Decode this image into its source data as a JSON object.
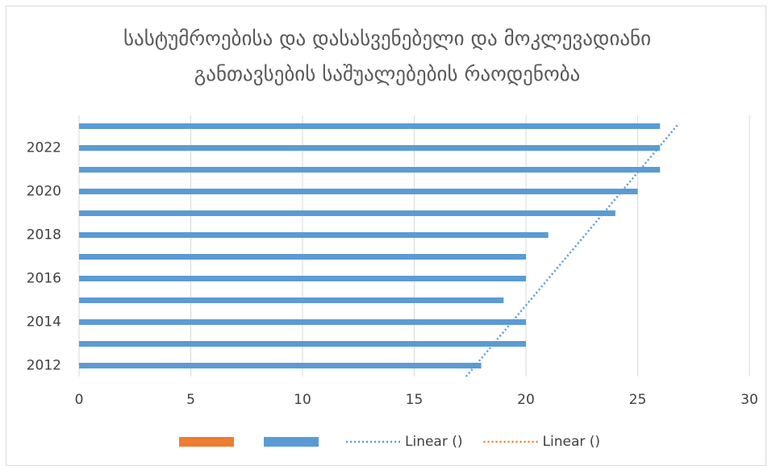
{
  "chart_data": {
    "type": "hbar",
    "title": "სასტუმროებისა და დასასვენებელი და მოკლევადიანი განთავსების საშუალებების რაოდენობა",
    "categories": [
      "2012",
      null,
      "2014",
      null,
      "2016",
      null,
      "2018",
      null,
      "2020",
      null,
      "2022",
      null
    ],
    "series": [
      {
        "color": "#ed7d31",
        "values": [
          null,
          null,
          null,
          null,
          null,
          null,
          null,
          null,
          null,
          null,
          null,
          null
        ],
        "trendline": {
          "name": "Linear ()"
        }
      },
      {
        "color": "#5b9bd5",
        "values": [
          18,
          20,
          20,
          19,
          20,
          20,
          21,
          24,
          25,
          26,
          26,
          26
        ],
        "trendline": {
          "name": "Linear ()"
        }
      }
    ],
    "xlim": [
      0,
      30
    ],
    "xticks": [
      0,
      5,
      10,
      15,
      20,
      25,
      30
    ],
    "grid": true
  }
}
